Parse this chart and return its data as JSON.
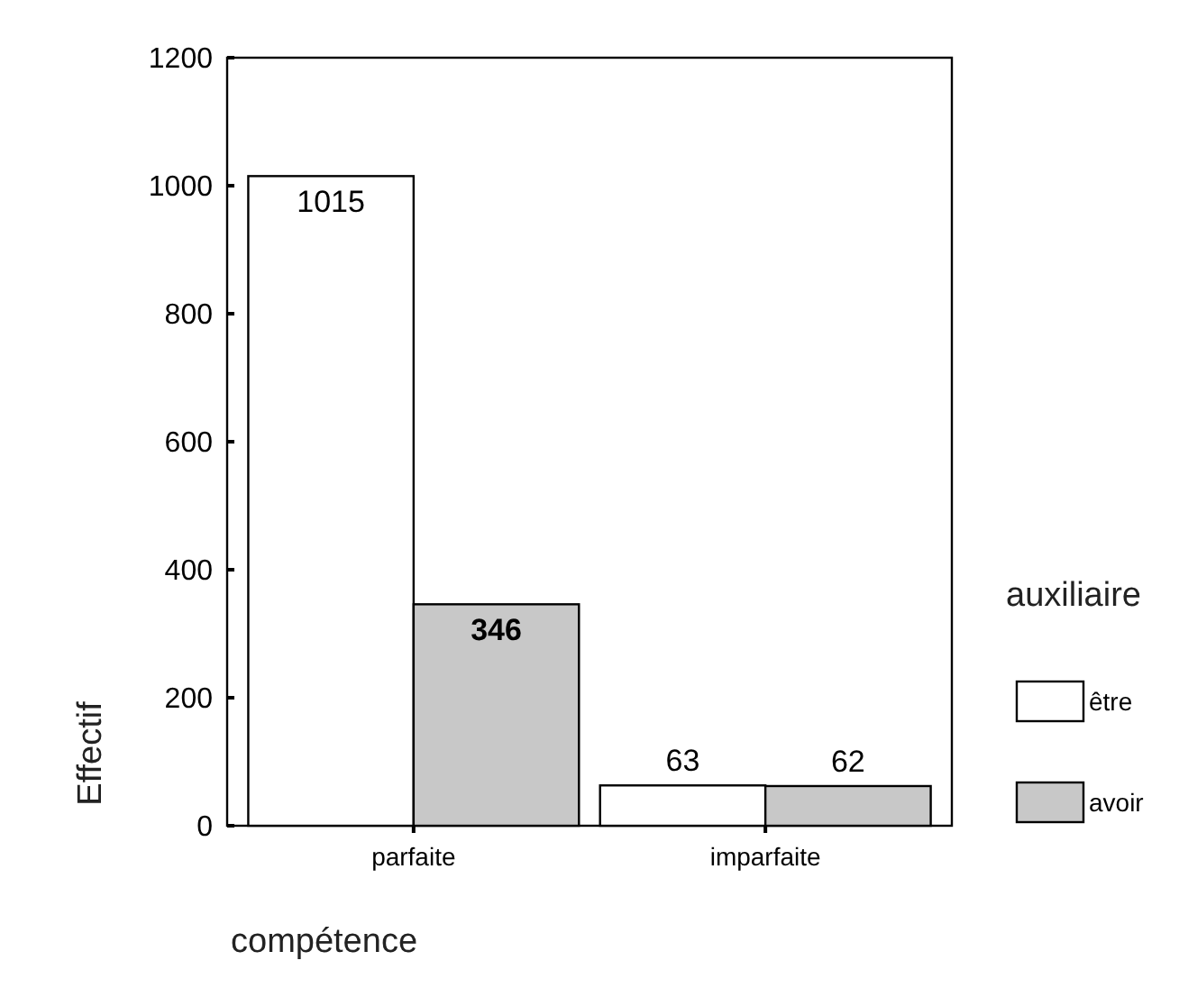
{
  "chart_data": {
    "type": "bar",
    "xlabel": "compétence",
    "ylabel": "Effectif",
    "legend_title": "auxiliaire",
    "categories": [
      "parfaite",
      "imparfaite"
    ],
    "series": [
      {
        "name": "être",
        "color": "#ffffff",
        "values": [
          1015,
          63
        ]
      },
      {
        "name": "avoir",
        "color": "#c8c8c8",
        "values": [
          346,
          62
        ]
      }
    ],
    "ylim": [
      0,
      1200
    ],
    "yticks": [
      0,
      200,
      400,
      600,
      800,
      1000,
      1200
    ],
    "data_labels": true,
    "legend": "right",
    "grid": false
  }
}
